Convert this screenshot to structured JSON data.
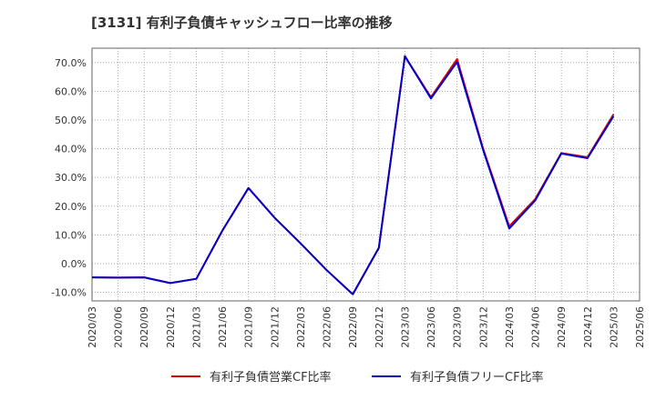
{
  "chart_data": {
    "type": "line",
    "title": "[3131]  有利子負債キャッシュフロー比率の推移",
    "xlabel": "",
    "ylabel": "",
    "ylim": [
      -13,
      75
    ],
    "yticks": [
      -10,
      0,
      10,
      20,
      30,
      40,
      50,
      60,
      70
    ],
    "ytick_labels": [
      "-10.0%",
      "0.0%",
      "10.0%",
      "20.0%",
      "30.0%",
      "40.0%",
      "50.0%",
      "60.0%",
      "70.0%"
    ],
    "xtick_labels": [
      "2020/03",
      "2020/06",
      "2020/09",
      "2020/12",
      "2021/03",
      "2021/06",
      "2021/09",
      "2021/12",
      "2022/03",
      "2022/06",
      "2022/09",
      "2022/12",
      "2023/03",
      "2023/06",
      "2023/09",
      "2023/12",
      "2024/03",
      "2024/06",
      "2024/09",
      "2024/12",
      "2025/03",
      "2025/06"
    ],
    "x": [
      "2020/03",
      "2020/06",
      "2020/09",
      "2020/12",
      "2021/03",
      "2021/06",
      "2021/09",
      "2021/12",
      "2022/03",
      "2022/06",
      "2022/09",
      "2022/12",
      "2023/03",
      "2023/06",
      "2023/09",
      "2023/12",
      "2024/03",
      "2024/06",
      "2024/09",
      "2024/12",
      "2025/03"
    ],
    "grid": true,
    "legend": "bottom-center",
    "series": [
      {
        "name": "有利子負債営業CF比率",
        "color": "#dd0000",
        "values": [
          -4.8,
          -4.9,
          -4.8,
          -6.8,
          -5.3,
          11.5,
          26.3,
          16.0,
          7.0,
          -2.3,
          -10.7,
          5.5,
          72.2,
          57.9,
          71.2,
          40.0,
          13.0,
          22.5,
          38.5,
          37.0,
          52.0
        ],
        "x_index": [
          0,
          1,
          2,
          3,
          4,
          5,
          6,
          7,
          8,
          9,
          10,
          11,
          12,
          13,
          14,
          15,
          16,
          17,
          18,
          19,
          20
        ]
      },
      {
        "name": "有利子負債フリーCF比率",
        "color": "#0000cc",
        "values": [
          -4.8,
          -4.9,
          -4.8,
          -6.8,
          -5.3,
          11.5,
          26.3,
          16.0,
          7.0,
          -2.3,
          -10.7,
          5.5,
          72.2,
          57.5,
          70.2,
          39.5,
          12.2,
          22.0,
          38.3,
          36.7,
          51.3
        ],
        "x_index": [
          0,
          1,
          2,
          3,
          4,
          5,
          6,
          7,
          8,
          9,
          10,
          11,
          12,
          13,
          14,
          15,
          16,
          17,
          18,
          19,
          20
        ]
      }
    ]
  }
}
